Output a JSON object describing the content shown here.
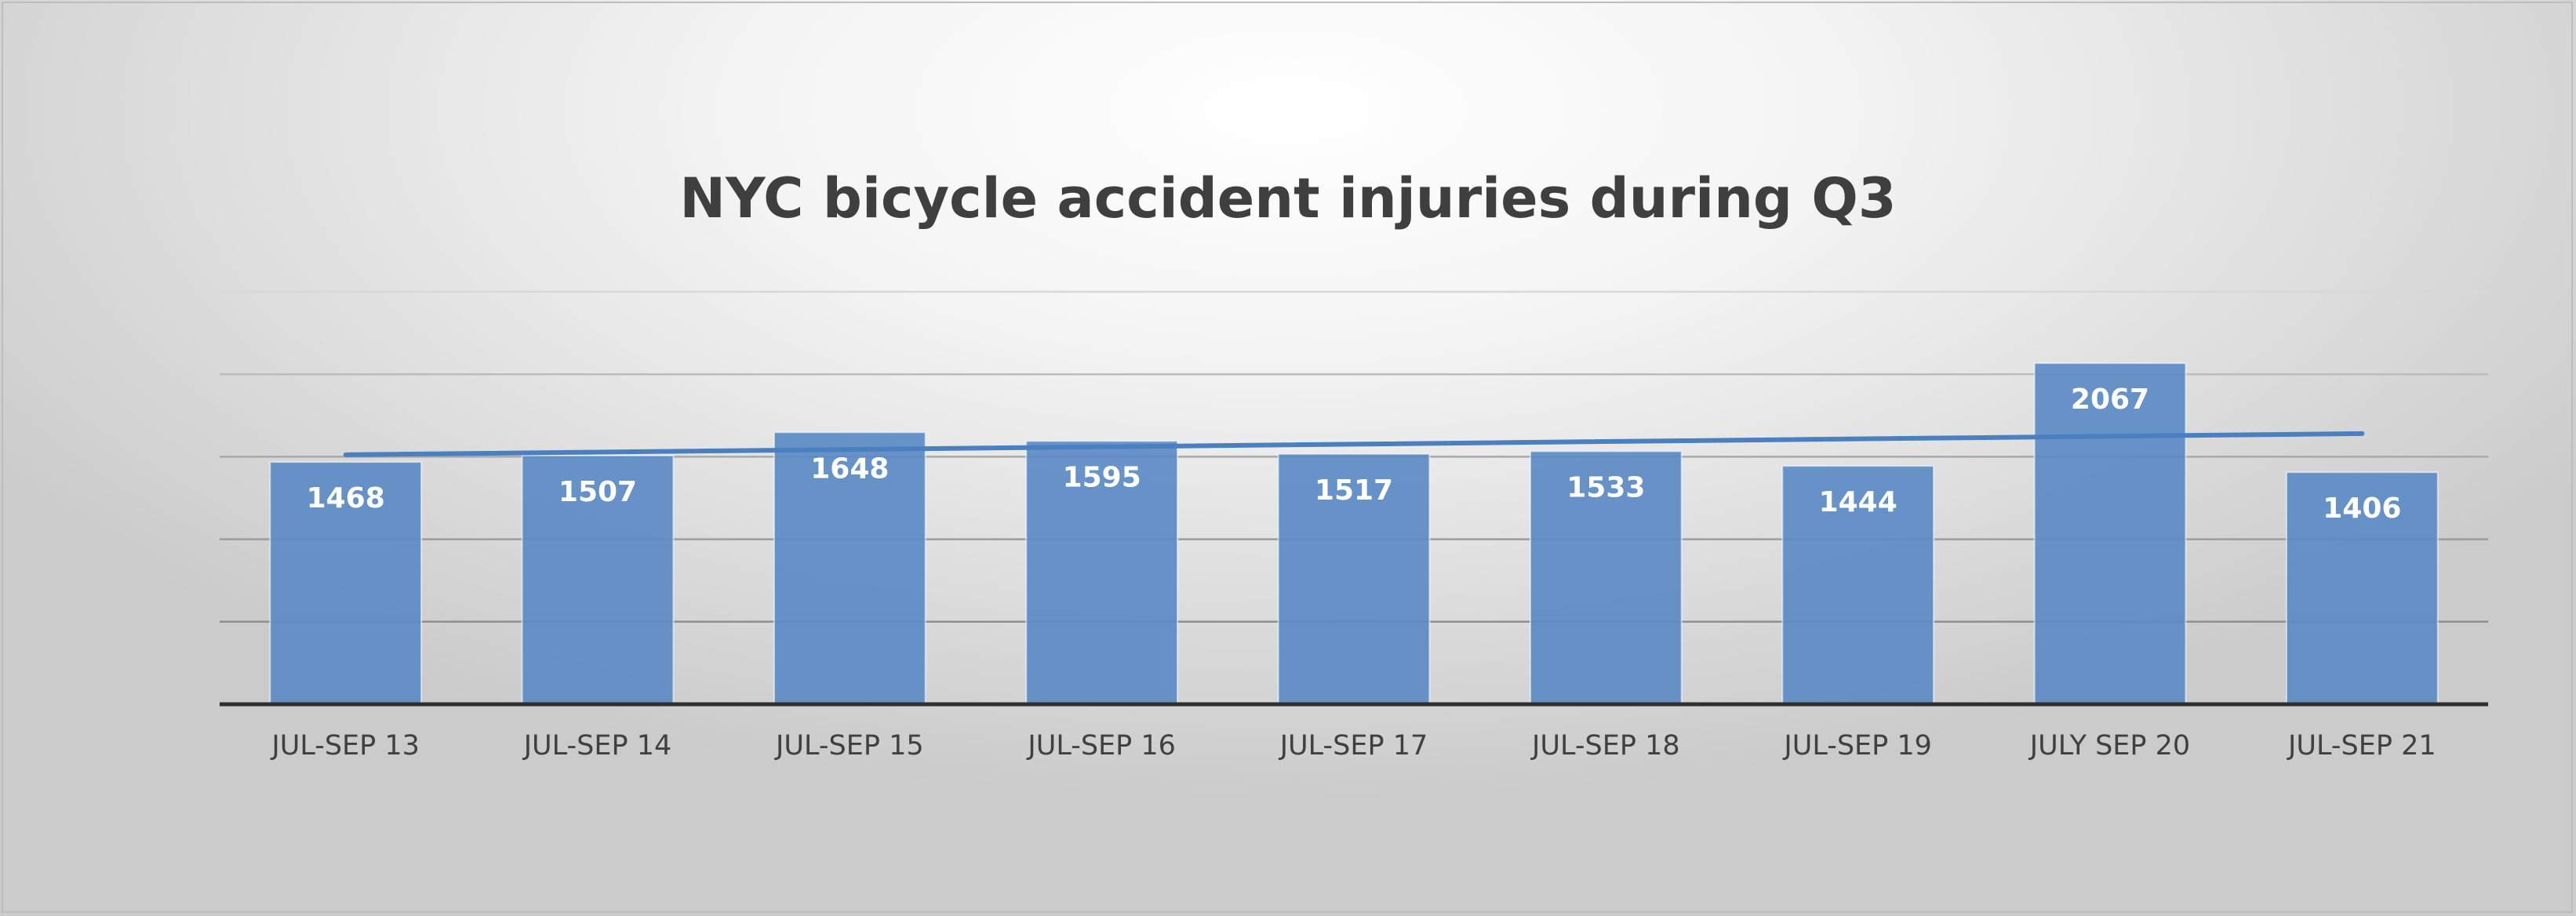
{
  "chart_data": {
    "type": "bar",
    "title": "NYC bicycle accident injuries during Q3",
    "categories": [
      "JUL-SEP 13",
      "JUL-SEP 14",
      "JUL-SEP 15",
      "JUL-SEP 16",
      "JUL-SEP 17",
      "JUL-SEP 18",
      "JUL-SEP 19",
      "JULY SEP 20",
      "JUL-SEP 21"
    ],
    "series": [
      {
        "values": [
          1468,
          1507,
          1648,
          1595,
          1517,
          1533,
          1444,
          2067,
          1406
        ],
        "color": "#5b8bc5",
        "data_labels": true
      }
    ],
    "trendline": {
      "type": "linear",
      "color": "#4a7fc0"
    },
    "ylim": [
      0,
      2500
    ],
    "y_gridlines": [
      0,
      500,
      1000,
      1500,
      2000,
      2500
    ],
    "y_tick_labels_shown": false,
    "grid": true,
    "legend": "none",
    "xlabel": "",
    "ylabel": ""
  }
}
